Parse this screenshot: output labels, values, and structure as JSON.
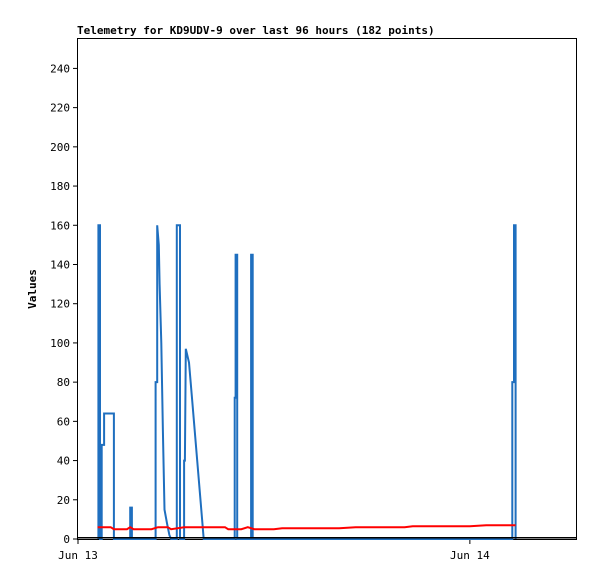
{
  "chart_data": {
    "type": "line",
    "title": "Telemetry for KD9UDV-9 over last 96 hours (182 points)",
    "xlabel": "",
    "ylabel": "Values",
    "x_unit": "hours since Jun 13 00:00",
    "xlim": [
      0,
      30.5
    ],
    "ylim": [
      0,
      255
    ],
    "yticks": [
      0,
      20,
      40,
      60,
      80,
      100,
      120,
      140,
      160,
      180,
      200,
      220,
      240
    ],
    "xticks": [
      {
        "x": 0,
        "label": "Jun 13"
      },
      {
        "x": 24,
        "label": "Jun 14"
      }
    ],
    "grid": false,
    "legend": "none",
    "series": [
      {
        "color": "#1f6fbf",
        "points": [
          [
            1.25,
            0
          ],
          [
            1.25,
            160
          ],
          [
            1.35,
            160
          ],
          [
            1.35,
            0
          ],
          [
            1.45,
            0
          ],
          [
            1.45,
            48
          ],
          [
            1.6,
            48
          ],
          [
            1.6,
            64
          ],
          [
            2.2,
            64
          ],
          [
            2.2,
            0
          ],
          [
            3.2,
            0
          ],
          [
            3.2,
            16
          ],
          [
            3.3,
            16
          ],
          [
            3.3,
            0
          ],
          [
            4.75,
            0
          ],
          [
            4.75,
            80
          ],
          [
            4.85,
            80
          ],
          [
            4.85,
            160
          ],
          [
            4.95,
            150
          ],
          [
            5.0,
            130
          ],
          [
            5.1,
            100
          ],
          [
            5.2,
            55
          ],
          [
            5.3,
            15
          ],
          [
            5.45,
            8
          ],
          [
            5.6,
            2
          ],
          [
            5.7,
            0
          ],
          [
            6.05,
            0
          ],
          [
            6.05,
            160
          ],
          [
            6.25,
            160
          ],
          [
            6.25,
            0
          ],
          [
            6.5,
            0
          ],
          [
            6.5,
            40
          ],
          [
            6.55,
            40
          ],
          [
            6.6,
            97
          ],
          [
            6.8,
            90
          ],
          [
            7.0,
            70
          ],
          [
            7.3,
            40
          ],
          [
            7.6,
            10
          ],
          [
            7.7,
            0
          ],
          [
            9.6,
            0
          ],
          [
            9.6,
            72
          ],
          [
            9.65,
            72
          ],
          [
            9.65,
            145
          ],
          [
            9.75,
            145
          ],
          [
            9.75,
            0
          ],
          [
            10.6,
            0
          ],
          [
            10.6,
            145
          ],
          [
            10.7,
            145
          ],
          [
            10.7,
            0
          ],
          [
            26.6,
            0
          ],
          [
            26.6,
            80
          ],
          [
            26.7,
            80
          ],
          [
            26.7,
            160
          ],
          [
            26.8,
            160
          ],
          [
            26.8,
            0
          ]
        ]
      },
      {
        "color": "#ff0000",
        "points": [
          [
            1.2,
            6
          ],
          [
            2.0,
            6
          ],
          [
            2.2,
            5
          ],
          [
            3.0,
            5
          ],
          [
            3.2,
            6
          ],
          [
            3.4,
            5
          ],
          [
            4.5,
            5
          ],
          [
            4.9,
            6
          ],
          [
            5.5,
            6
          ],
          [
            5.7,
            5
          ],
          [
            6.5,
            6
          ],
          [
            9.0,
            6
          ],
          [
            9.2,
            5
          ],
          [
            10.0,
            5
          ],
          [
            10.4,
            6
          ],
          [
            10.8,
            5
          ],
          [
            12.0,
            5
          ],
          [
            12.5,
            5.5
          ],
          [
            16.0,
            5.5
          ],
          [
            17.0,
            6
          ],
          [
            20.0,
            6
          ],
          [
            20.5,
            6.5
          ],
          [
            24.0,
            6.5
          ],
          [
            25.0,
            7
          ],
          [
            26.8,
            7
          ]
        ]
      },
      {
        "color": "#000000",
        "points": [
          [
            0,
            0.6
          ],
          [
            30.5,
            0.6
          ]
        ]
      }
    ]
  }
}
